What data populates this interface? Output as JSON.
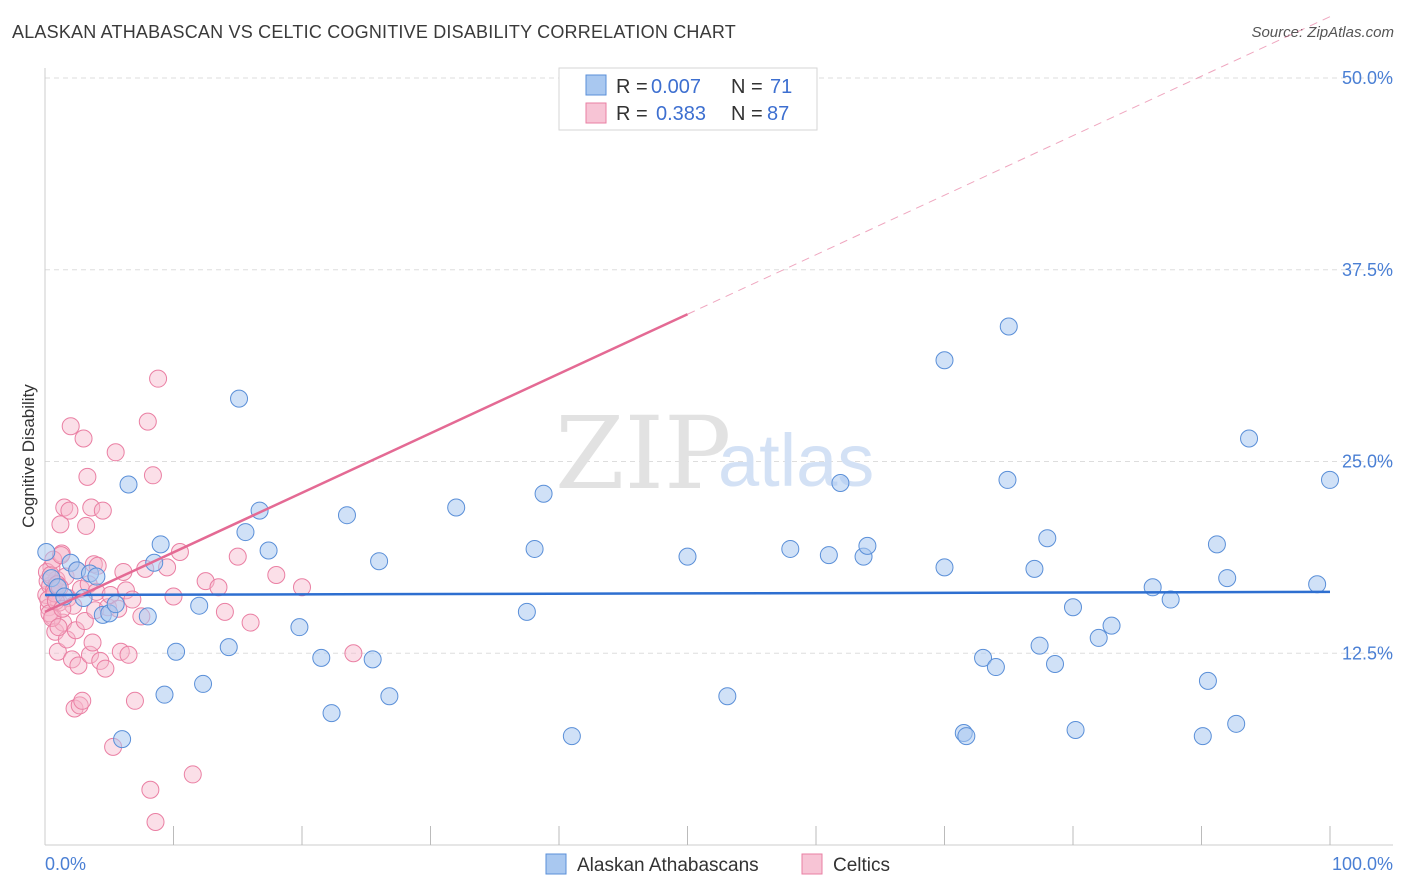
{
  "title": "ALASKAN ATHABASCAN VS CELTIC COGNITIVE DISABILITY CORRELATION CHART",
  "source": "Source: ZipAtlas.com",
  "watermark": {
    "zip": "ZIP",
    "atlas": "atlas"
  },
  "legend": {
    "r_label": "R =",
    "n_label": "N =",
    "entries": [
      {
        "r": "0.007",
        "n": "71"
      },
      {
        "r": "0.383",
        "n": "87"
      }
    ]
  },
  "bottom_legend": [
    "Alaskan Athabascans",
    "Celtics"
  ],
  "colors": {
    "blue_fill": "#a9c8f0",
    "blue_stroke": "#5a8fd8",
    "blue_line": "#2e6fd0",
    "pink_fill": "#f7b9cd",
    "pink_stroke": "#ea7fa3",
    "pink_line": "#e46a94",
    "axis_label": "#4a7fd4",
    "grid": "#dddddd"
  },
  "chart_data": {
    "type": "scatter",
    "title": "ALASKAN ATHABASCAN VS CELTIC COGNITIVE DISABILITY CORRELATION CHART",
    "xlabel": "",
    "ylabel": "Cognitive Disability",
    "xlim": [
      0,
      100
    ],
    "ylim": [
      0,
      50
    ],
    "x_tick_labels": [
      "0.0%",
      "100.0%"
    ],
    "y_ticks": [
      12.5,
      25.0,
      37.5,
      50.0
    ],
    "y_tick_labels": [
      "12.5%",
      "25.0%",
      "37.5%",
      "50.0%"
    ],
    "grid": true,
    "series": [
      {
        "name": "Alaskan Athabascans",
        "r": 0.007,
        "n": 71,
        "trend": {
          "x": [
            0,
            100
          ],
          "y": [
            16.3,
            16.5
          ]
        },
        "points": [
          [
            0.1,
            19.1
          ],
          [
            0.5,
            17.4
          ],
          [
            1.0,
            16.8
          ],
          [
            1.5,
            16.2
          ],
          [
            2.0,
            18.4
          ],
          [
            2.5,
            17.9
          ],
          [
            3.0,
            16.1
          ],
          [
            3.5,
            17.7
          ],
          [
            4.0,
            17.5
          ],
          [
            4.5,
            15.0
          ],
          [
            5.0,
            15.1
          ],
          [
            5.5,
            15.7
          ],
          [
            6.0,
            6.9
          ],
          [
            6.5,
            23.5
          ],
          [
            8.0,
            14.9
          ],
          [
            8.5,
            18.4
          ],
          [
            9.0,
            19.6
          ],
          [
            9.3,
            9.8
          ],
          [
            10.2,
            12.6
          ],
          [
            12.0,
            15.6
          ],
          [
            12.3,
            10.5
          ],
          [
            14.3,
            12.9
          ],
          [
            15.1,
            29.1
          ],
          [
            15.6,
            20.4
          ],
          [
            16.7,
            21.8
          ],
          [
            17.4,
            19.2
          ],
          [
            19.8,
            14.2
          ],
          [
            21.5,
            12.2
          ],
          [
            22.3,
            8.6
          ],
          [
            23.5,
            21.5
          ],
          [
            25.5,
            12.1
          ],
          [
            26.0,
            18.5
          ],
          [
            26.8,
            9.7
          ],
          [
            32.0,
            22.0
          ],
          [
            37.5,
            15.2
          ],
          [
            38.1,
            19.3
          ],
          [
            38.8,
            22.9
          ],
          [
            41.0,
            7.1
          ],
          [
            50.0,
            18.8
          ],
          [
            53.1,
            9.7
          ],
          [
            58.0,
            19.3
          ],
          [
            61.0,
            18.9
          ],
          [
            61.9,
            23.6
          ],
          [
            63.7,
            18.8
          ],
          [
            64.0,
            19.5
          ],
          [
            70.0,
            31.6
          ],
          [
            70.0,
            18.1
          ],
          [
            71.5,
            7.3
          ],
          [
            71.7,
            7.1
          ],
          [
            73.0,
            12.2
          ],
          [
            74.0,
            11.6
          ],
          [
            74.9,
            23.8
          ],
          [
            75.0,
            33.8
          ],
          [
            77.0,
            18.0
          ],
          [
            77.4,
            13.0
          ],
          [
            78.0,
            20.0
          ],
          [
            78.6,
            11.8
          ],
          [
            80.0,
            15.5
          ],
          [
            80.2,
            7.5
          ],
          [
            82.0,
            13.5
          ],
          [
            83.0,
            14.3
          ],
          [
            86.2,
            16.8
          ],
          [
            87.6,
            16.0
          ],
          [
            90.1,
            7.1
          ],
          [
            90.5,
            10.7
          ],
          [
            91.2,
            19.6
          ],
          [
            92.0,
            17.4
          ],
          [
            92.7,
            7.9
          ],
          [
            93.7,
            26.5
          ],
          [
            99.0,
            17.0
          ],
          [
            100.0,
            23.8
          ]
        ]
      },
      {
        "name": "Celtics",
        "r": 0.383,
        "n": 87,
        "trend": {
          "x": [
            0,
            50
          ],
          "y": [
            15.2,
            34.6
          ]
        },
        "trend_dashed": {
          "x": [
            50,
            100
          ],
          "y": [
            34.6,
            54.0
          ]
        },
        "points": [
          [
            0.1,
            16.3
          ],
          [
            0.2,
            17.2
          ],
          [
            0.3,
            15.5
          ],
          [
            0.4,
            16.9
          ],
          [
            0.5,
            18.1
          ],
          [
            0.6,
            14.9
          ],
          [
            0.7,
            16.6
          ],
          [
            0.8,
            13.9
          ],
          [
            0.9,
            17.3
          ],
          [
            1.0,
            12.6
          ],
          [
            1.1,
            15.8
          ],
          [
            1.2,
            20.9
          ],
          [
            1.3,
            19.0
          ],
          [
            1.4,
            14.5
          ],
          [
            1.5,
            22.0
          ],
          [
            1.6,
            17.5
          ],
          [
            1.7,
            13.4
          ],
          [
            1.8,
            16.1
          ],
          [
            1.9,
            21.8
          ],
          [
            2.0,
            27.3
          ],
          [
            2.1,
            12.1
          ],
          [
            2.2,
            15.6
          ],
          [
            2.3,
            8.9
          ],
          [
            2.4,
            14.0
          ],
          [
            2.5,
            17.9
          ],
          [
            2.6,
            11.7
          ],
          [
            2.7,
            9.1
          ],
          [
            2.8,
            16.7
          ],
          [
            2.9,
            9.4
          ],
          [
            3.0,
            26.5
          ],
          [
            3.1,
            14.6
          ],
          [
            3.2,
            20.8
          ],
          [
            3.3,
            24.0
          ],
          [
            3.4,
            17.0
          ],
          [
            3.5,
            12.4
          ],
          [
            3.6,
            22.0
          ],
          [
            3.7,
            13.2
          ],
          [
            3.8,
            18.3
          ],
          [
            3.9,
            15.3
          ],
          [
            4.0,
            16.5
          ],
          [
            4.1,
            18.2
          ],
          [
            4.3,
            12.0
          ],
          [
            4.5,
            21.8
          ],
          [
            4.7,
            11.5
          ],
          [
            4.9,
            15.5
          ],
          [
            5.1,
            16.3
          ],
          [
            5.3,
            6.4
          ],
          [
            5.5,
            25.6
          ],
          [
            5.7,
            15.4
          ],
          [
            5.9,
            12.6
          ],
          [
            6.1,
            17.8
          ],
          [
            6.3,
            16.6
          ],
          [
            6.5,
            12.4
          ],
          [
            6.8,
            16.0
          ],
          [
            7.0,
            9.4
          ],
          [
            7.5,
            14.9
          ],
          [
            7.8,
            18.0
          ],
          [
            8.0,
            27.6
          ],
          [
            8.2,
            3.6
          ],
          [
            8.4,
            24.1
          ],
          [
            8.6,
            1.5
          ],
          [
            8.8,
            30.4
          ],
          [
            9.5,
            18.1
          ],
          [
            10.0,
            16.2
          ],
          [
            10.5,
            19.1
          ],
          [
            11.5,
            4.6
          ],
          [
            12.5,
            17.2
          ],
          [
            13.5,
            16.8
          ],
          [
            14.0,
            15.2
          ],
          [
            15.0,
            18.8
          ],
          [
            16.0,
            14.5
          ],
          [
            18.0,
            17.6
          ],
          [
            20.0,
            16.8
          ],
          [
            24.0,
            12.5
          ],
          [
            0.15,
            17.8
          ],
          [
            0.25,
            16.0
          ],
          [
            0.35,
            15.1
          ],
          [
            0.45,
            17.6
          ],
          [
            0.55,
            14.8
          ],
          [
            0.65,
            18.6
          ],
          [
            0.75,
            16.4
          ],
          [
            0.85,
            15.9
          ],
          [
            0.95,
            17.0
          ],
          [
            1.05,
            14.2
          ],
          [
            1.15,
            16.8
          ],
          [
            1.25,
            18.9
          ],
          [
            1.35,
            15.4
          ]
        ]
      }
    ]
  }
}
